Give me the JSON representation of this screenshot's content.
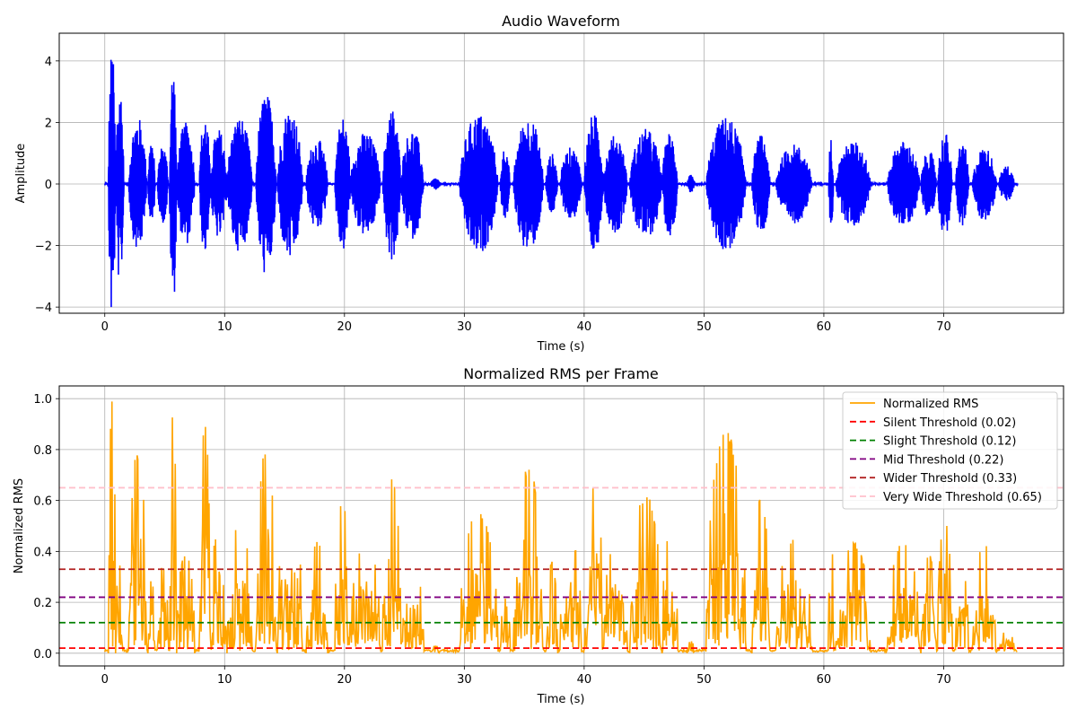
{
  "chart_data": [
    {
      "type": "line",
      "title": "Audio Waveform",
      "xlabel": "Time (s)",
      "ylabel": "Amplitude",
      "xlim": [
        -3.8,
        80.0
      ],
      "ylim": [
        -4.2,
        4.9
      ],
      "xticks": [
        0,
        10,
        20,
        30,
        40,
        50,
        60,
        70
      ],
      "yticks": [
        -4,
        -2,
        0,
        2,
        4
      ],
      "grid": true,
      "series": [
        {
          "color": "#0000ff",
          "duration": 76.2,
          "bursts": [
            [
              0.3,
              0.9,
              4.5
            ],
            [
              0.9,
              1.6,
              3.3
            ],
            [
              2.0,
              3.5,
              2.2
            ],
            [
              3.6,
              4.2,
              1.5
            ],
            [
              4.4,
              5.3,
              1.3
            ],
            [
              5.4,
              6.0,
              4.0
            ],
            [
              6.0,
              7.5,
              2.0
            ],
            [
              7.9,
              8.8,
              2.3
            ],
            [
              8.8,
              10.2,
              1.8
            ],
            [
              10.2,
              12.3,
              2.2
            ],
            [
              12.6,
              14.3,
              3.0
            ],
            [
              14.4,
              16.5,
              2.5
            ],
            [
              16.8,
              18.6,
              1.5
            ],
            [
              19.2,
              20.5,
              2.2
            ],
            [
              20.5,
              23.0,
              1.7
            ],
            [
              23.2,
              24.7,
              2.5
            ],
            [
              24.7,
              26.6,
              1.8
            ],
            [
              27.2,
              28.0,
              0.2
            ],
            [
              29.6,
              32.8,
              2.3
            ],
            [
              33.0,
              33.8,
              1.2
            ],
            [
              34.1,
              36.6,
              2.2
            ],
            [
              36.8,
              37.8,
              1.0
            ],
            [
              38.0,
              39.8,
              1.2
            ],
            [
              40.0,
              41.6,
              2.3
            ],
            [
              41.6,
              43.6,
              1.6
            ],
            [
              43.8,
              46.5,
              1.8
            ],
            [
              46.5,
              47.8,
              1.7
            ],
            [
              48.6,
              49.2,
              0.3
            ],
            [
              50.2,
              53.5,
              2.2
            ],
            [
              54.0,
              55.5,
              1.6
            ],
            [
              56.0,
              59.0,
              1.3
            ],
            [
              60.4,
              60.8,
              1.5
            ],
            [
              61.0,
              63.9,
              1.4
            ],
            [
              65.3,
              68.0,
              1.4
            ],
            [
              68.1,
              69.4,
              1.1
            ],
            [
              69.5,
              70.7,
              1.7
            ],
            [
              71.0,
              72.1,
              1.4
            ],
            [
              72.4,
              74.4,
              1.2
            ],
            [
              74.6,
              75.9,
              0.6
            ]
          ]
        }
      ]
    },
    {
      "type": "line",
      "title": "Normalized RMS per Frame",
      "xlabel": "Time (s)",
      "ylabel": "Normalized RMS",
      "xlim": [
        -3.8,
        80.0
      ],
      "ylim": [
        -0.05,
        1.05
      ],
      "xticks": [
        0,
        10,
        20,
        30,
        40,
        50,
        60,
        70
      ],
      "yticks": [
        0.0,
        0.2,
        0.4,
        0.6,
        0.8,
        1.0
      ],
      "grid": true,
      "legend_position": "top-right",
      "series": [
        {
          "name": "Normalized RMS",
          "color": "#ffa500",
          "style": "solid",
          "duration": 76.2,
          "bursts": [
            [
              0.3,
              0.9,
              1.0
            ],
            [
              0.9,
              1.6,
              0.36
            ],
            [
              2.0,
              3.5,
              0.8
            ],
            [
              3.6,
              4.2,
              0.3
            ],
            [
              4.4,
              5.3,
              0.35
            ],
            [
              5.4,
              6.0,
              0.96
            ],
            [
              6.0,
              7.5,
              0.4
            ],
            [
              7.9,
              8.8,
              0.91
            ],
            [
              8.8,
              10.2,
              0.5
            ],
            [
              10.2,
              12.3,
              0.52
            ],
            [
              12.6,
              14.3,
              0.81
            ],
            [
              14.4,
              16.5,
              0.6
            ],
            [
              16.8,
              18.6,
              0.45
            ],
            [
              19.2,
              20.5,
              0.6
            ],
            [
              20.5,
              23.0,
              0.45
            ],
            [
              23.2,
              24.7,
              0.71
            ],
            [
              24.7,
              26.6,
              0.38
            ],
            [
              27.2,
              28.0,
              0.03
            ],
            [
              29.6,
              32.8,
              0.56
            ],
            [
              33.0,
              33.8,
              0.35
            ],
            [
              34.1,
              36.6,
              0.73
            ],
            [
              36.8,
              37.8,
              0.36
            ],
            [
              38.0,
              39.8,
              0.45
            ],
            [
              40.0,
              41.6,
              0.67
            ],
            [
              41.6,
              43.6,
              0.45
            ],
            [
              43.8,
              46.5,
              0.63
            ],
            [
              46.5,
              47.8,
              0.47
            ],
            [
              48.6,
              49.2,
              0.05
            ],
            [
              50.2,
              53.5,
              0.87
            ],
            [
              54.0,
              55.5,
              0.61
            ],
            [
              56.0,
              59.0,
              0.45
            ],
            [
              60.4,
              60.8,
              0.5
            ],
            [
              61.0,
              63.9,
              0.44
            ],
            [
              65.3,
              68.0,
              0.45
            ],
            [
              68.1,
              69.4,
              0.39
            ],
            [
              69.5,
              70.7,
              0.53
            ],
            [
              71.0,
              72.1,
              0.33
            ],
            [
              72.4,
              74.4,
              0.44
            ],
            [
              74.6,
              75.9,
              0.09
            ]
          ]
        },
        {
          "name": "Silent Threshold (0.02)",
          "value": 0.02,
          "color": "#ff0000",
          "style": "dashed"
        },
        {
          "name": "Slight Threshold (0.12)",
          "value": 0.12,
          "color": "#008000",
          "style": "dashed"
        },
        {
          "name": "Mid Threshold (0.22)",
          "value": 0.22,
          "color": "#800080",
          "style": "dashed"
        },
        {
          "name": "Wider Threshold (0.33)",
          "value": 0.33,
          "color": "#b22222",
          "style": "dashed"
        },
        {
          "name": "Very Wide Threshold (0.65)",
          "value": 0.65,
          "color": "#ffc0cb",
          "style": "dashed"
        }
      ]
    }
  ]
}
